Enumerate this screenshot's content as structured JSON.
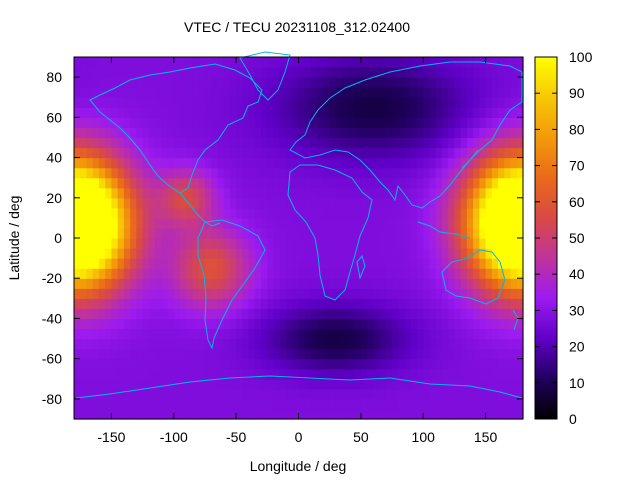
{
  "chart_data": {
    "type": "heatmap",
    "title": "VTEC / TECU 20231108_312.02400",
    "xlabel": "Longitude / deg",
    "ylabel": "Latitude / deg",
    "xlim": [
      -180,
      180
    ],
    "ylim": [
      -90,
      90
    ],
    "xticks": [
      -150,
      -100,
      -50,
      0,
      50,
      100,
      150
    ],
    "yticks": [
      -80,
      -60,
      -40,
      -20,
      0,
      20,
      40,
      60,
      80
    ],
    "colorbar": {
      "range": [
        0,
        100
      ],
      "ticks": [
        0,
        10,
        20,
        30,
        40,
        50,
        60,
        70,
        80,
        90,
        100
      ],
      "palette": [
        "#000000",
        "#20005e",
        "#6000c8",
        "#9c1bf0",
        "#c0339c",
        "#d94a44",
        "#ea6a1a",
        "#f39a0a",
        "#f7c805",
        "#ffff00"
      ]
    },
    "grid": false,
    "features": [
      {
        "name": "equatorial anomaly peak (Pacific)",
        "lon": -175,
        "lat": 5,
        "value": 95
      },
      {
        "name": "equatorial anomaly peak (western Pacific)",
        "lon": 175,
        "lat": 10,
        "value": 92
      },
      {
        "name": "South America crest",
        "lon": -70,
        "lat": -15,
        "value": 58
      },
      {
        "name": "Central America crest",
        "lon": -90,
        "lat": 20,
        "value": 57
      },
      {
        "name": "night-side minimum (Southern Africa)",
        "lon": 30,
        "lat": -50,
        "value": 8
      },
      {
        "name": "night-side minimum (Siberia)",
        "lon": 60,
        "lat": 65,
        "value": 8
      },
      {
        "name": "background",
        "value": 28
      }
    ]
  }
}
